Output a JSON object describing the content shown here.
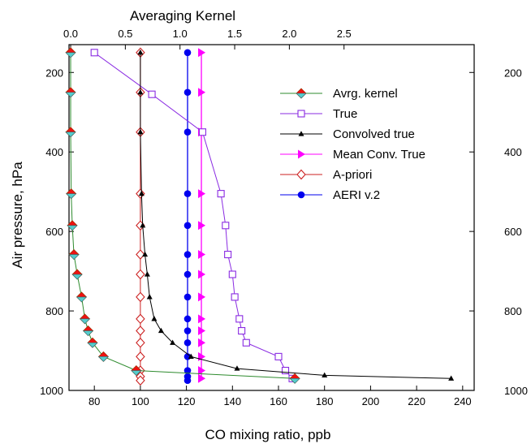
{
  "chart_data": {
    "type": "line",
    "title": "",
    "xlabel": "CO mixing ratio, ppb",
    "x2label": "Averaging Kernel",
    "ylabel": "Air pressure, hPa",
    "xlim": [
      69,
      245
    ],
    "x2lim": [
      -0.015,
      3.69
    ],
    "ylim": [
      1000,
      130
    ],
    "y_inverted": true,
    "xticks": [
      80,
      100,
      120,
      140,
      160,
      180,
      200,
      220,
      240
    ],
    "x2ticks": [
      "0.0",
      "0.5",
      "1.0",
      "1.5",
      "2.0",
      "2.5"
    ],
    "x2tick_values": [
      0,
      0.5,
      1.0,
      1.5,
      2.0,
      2.5
    ],
    "yticks": [
      200,
      400,
      600,
      800,
      1000
    ],
    "grid": false,
    "legend_position": "top-right",
    "series": [
      {
        "name": "Avrg. kernel",
        "axis": "top",
        "color": "#2e8b2e",
        "marker": "diamond-red-cyan",
        "x": [
          0,
          0,
          0,
          0.005,
          0.015,
          0.03,
          0.06,
          0.1,
          0.13,
          0.16,
          0.2,
          0.3,
          0.6,
          2.05
        ],
        "y": [
          150,
          250,
          350,
          505,
          585,
          658,
          708,
          765,
          820,
          850,
          880,
          915,
          950,
          970
        ]
      },
      {
        "name": "True",
        "axis": "bottom",
        "color": "#8a2be2",
        "marker": "square-open",
        "x": [
          80,
          105,
          127,
          135,
          137,
          138,
          140,
          141,
          143,
          144,
          146,
          160,
          163,
          166
        ],
        "y": [
          150,
          255,
          350,
          505,
          585,
          658,
          708,
          765,
          820,
          850,
          880,
          915,
          950,
          970
        ]
      },
      {
        "name": "Convolved true",
        "axis": "bottom",
        "color": "#000000",
        "marker": "triangle-up-small",
        "x": [
          100,
          100,
          100,
          100.5,
          101,
          102,
          103,
          104,
          106,
          109,
          114,
          122,
          142,
          180,
          235
        ],
        "y": [
          150,
          250,
          350,
          505,
          585,
          658,
          708,
          765,
          820,
          850,
          880,
          915,
          945,
          962,
          970
        ]
      },
      {
        "name": "Mean Conv. True",
        "axis": "bottom",
        "color": "#ff00ff",
        "marker": "triangle-right",
        "x": [
          126.5,
          126.5,
          126.5,
          126.5,
          126.5,
          126.5,
          126.5,
          126.5,
          126.5,
          126.5,
          126.5,
          126.5,
          126.5,
          126.5
        ],
        "y": [
          150,
          250,
          350,
          505,
          585,
          658,
          708,
          765,
          820,
          850,
          880,
          915,
          950,
          970
        ]
      },
      {
        "name": "A-priori",
        "axis": "bottom",
        "color": "#cc2222",
        "marker": "diamond-open",
        "x": [
          100,
          100,
          100,
          100,
          100,
          100,
          100,
          100,
          100,
          100,
          100,
          100,
          100,
          100,
          100
        ],
        "y": [
          150,
          250,
          350,
          505,
          585,
          658,
          708,
          765,
          820,
          850,
          880,
          915,
          950,
          965,
          975
        ]
      },
      {
        "name": "AERI v.2",
        "axis": "bottom",
        "color": "#0000ee",
        "marker": "circle-filled",
        "x": [
          120.5,
          120.5,
          120.5,
          120.5,
          120.5,
          120.5,
          120.5,
          120.5,
          120.5,
          120.5,
          120.5,
          120.5,
          120.5,
          120.5,
          120.5
        ],
        "y": [
          150,
          250,
          350,
          505,
          585,
          658,
          708,
          765,
          820,
          850,
          880,
          915,
          950,
          965,
          975
        ]
      }
    ]
  }
}
